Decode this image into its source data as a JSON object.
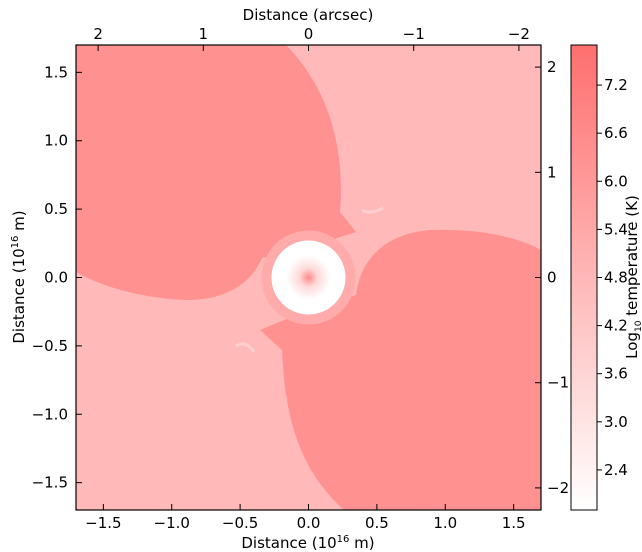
{
  "chart_data": {
    "type": "heatmap",
    "xlabel_bottom": "Distance (10",
    "xlabel_bottom_sup": "16",
    "xlabel_bottom_tail": " m)",
    "ylabel_left": "Distance (10",
    "ylabel_left_sup": "16",
    "ylabel_left_tail": " m)",
    "xlabel_top": "Distance (arcsec)",
    "colorbar_label": "Log",
    "colorbar_label_sub": "10",
    "colorbar_label_tail": " temperature (K)",
    "xlim": [
      -1.7,
      1.7
    ],
    "ylim": [
      -1.7,
      1.7
    ],
    "x_ticks": [
      -1.5,
      -1.0,
      -0.5,
      0.0,
      0.5,
      1.0,
      1.5
    ],
    "x_tick_labels": [
      "−1.5",
      "−1.0",
      "−0.5",
      "0.0",
      "0.5",
      "1.0",
      "1.5"
    ],
    "y_ticks": [
      -1.5,
      -1.0,
      -0.5,
      0.0,
      0.5,
      1.0,
      1.5
    ],
    "y_tick_labels": [
      "−1.5",
      "−1.0",
      "−0.5",
      "0.0",
      "0.5",
      "1.0",
      "1.5"
    ],
    "top_ticks_arcsec": [
      2,
      1,
      0,
      -1,
      -2
    ],
    "top_tick_labels": [
      "2",
      "1",
      "0",
      "−1",
      "−2"
    ],
    "right_ticks_arcsec": [
      2,
      1,
      0,
      -1,
      -2
    ],
    "right_tick_labels": [
      "2",
      "1",
      "0",
      "−1",
      "−2"
    ],
    "arcsec_per_unit": 1.3,
    "colorbar": {
      "range": [
        1.9,
        7.7
      ],
      "ticks": [
        2.4,
        3.0,
        3.6,
        4.2,
        4.8,
        5.4,
        6.0,
        6.6,
        7.2
      ],
      "tick_labels": [
        "2.4",
        "3.0",
        "3.6",
        "4.2",
        "4.8",
        "5.4",
        "6.0",
        "6.6",
        "7.2"
      ],
      "color_low": "#ffffff",
      "color_high": "#ff6f6f"
    },
    "regions": [
      {
        "name": "background-low",
        "log_temperature": 4.6
      },
      {
        "name": "outflow-lobes",
        "log_temperature": 6.1
      },
      {
        "name": "shell-ring",
        "log_temperature": 5.0
      },
      {
        "name": "central-core",
        "log_temperature": 2.3
      },
      {
        "name": "core-peak",
        "log_temperature": 6.8
      }
    ],
    "grid": false
  }
}
